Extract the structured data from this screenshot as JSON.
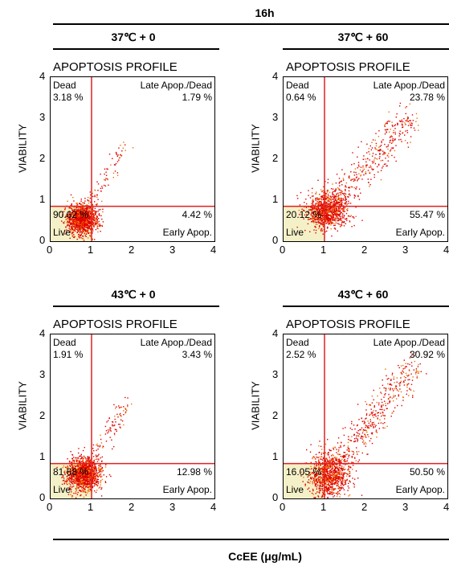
{
  "header": {
    "time_label": "16h"
  },
  "x_axis_label": "CcEE (μg/mL)",
  "chart_data": [
    {
      "type": "scatter",
      "condition": "37℃ + 0",
      "title": "APOPTOSIS PROFILE",
      "ylabel": "VIABILITY",
      "xlim": [
        0,
        4
      ],
      "ylim": [
        0,
        4
      ],
      "xticks": [
        "0",
        "1",
        "2",
        "3",
        "4"
      ],
      "yticks": [
        "0",
        "1",
        "2",
        "3",
        "4"
      ],
      "gate_x": 1,
      "gate_y": 0.85,
      "quadrants": {
        "dead": {
          "label": "Dead",
          "value": "3.18 %"
        },
        "late": {
          "label": "Late Apop./Dead",
          "value": "1.79 %"
        },
        "live": {
          "label": "Live",
          "value": "90.62 %"
        },
        "early": {
          "label": "Early Apop.",
          "value": "4.42 %"
        }
      },
      "cluster": {
        "cx": 0.75,
        "cy": 0.55,
        "sx": 0.18,
        "sy": 0.18,
        "spread": 0.18,
        "tail_fraction": 0.07,
        "tail_end": [
          1.8,
          2.4
        ]
      },
      "point_color": "#e00000"
    },
    {
      "type": "scatter",
      "condition": "37℃ + 60",
      "title": "APOPTOSIS PROFILE",
      "ylabel": "VIABILITY",
      "xlim": [
        0,
        4
      ],
      "ylim": [
        0,
        4
      ],
      "xticks": [
        "0",
        "1",
        "2",
        "3",
        "4"
      ],
      "yticks": [
        "0",
        "1",
        "2",
        "3",
        "4"
      ],
      "gate_x": 1,
      "gate_y": 0.85,
      "quadrants": {
        "dead": {
          "label": "Dead",
          "value": "0.64 %"
        },
        "late": {
          "label": "Late Apop./Dead",
          "value": "23.78 %"
        },
        "live": {
          "label": "Live",
          "value": "20.12 %"
        },
        "early": {
          "label": "Early Apop.",
          "value": "55.47 %"
        }
      },
      "cluster": {
        "cx": 1.05,
        "cy": 0.75,
        "sx": 0.25,
        "sy": 0.22,
        "spread": 0.3,
        "tail_fraction": 0.3,
        "tail_end": [
          3.1,
          3.1
        ]
      },
      "point_color": "#e00000"
    },
    {
      "type": "scatter",
      "condition": "43℃ + 0",
      "title": "APOPTOSIS PROFILE",
      "ylabel": "VIABILITY",
      "xlim": [
        0,
        4
      ],
      "ylim": [
        0,
        4
      ],
      "xticks": [
        "0",
        "1",
        "2",
        "3",
        "4"
      ],
      "yticks": [
        "0",
        "1",
        "2",
        "3",
        "4"
      ],
      "gate_x": 1,
      "gate_y": 0.85,
      "quadrants": {
        "dead": {
          "label": "Dead",
          "value": "1.91 %"
        },
        "late": {
          "label": "Late Apop./Dead",
          "value": "3.43 %"
        },
        "live": {
          "label": "Live",
          "value": "81.68 %"
        },
        "early": {
          "label": "Early Apop.",
          "value": "12.98 %"
        }
      },
      "cluster": {
        "cx": 0.8,
        "cy": 0.6,
        "sx": 0.2,
        "sy": 0.2,
        "spread": 0.2,
        "tail_fraction": 0.08,
        "tail_end": [
          1.9,
          2.4
        ]
      },
      "point_color": "#e00000"
    },
    {
      "type": "scatter",
      "condition": "43℃ + 60",
      "title": "APOPTOSIS PROFILE",
      "ylabel": "VIABILITY",
      "xlim": [
        0,
        4
      ],
      "ylim": [
        0,
        4
      ],
      "xticks": [
        "0",
        "1",
        "2",
        "3",
        "4"
      ],
      "yticks": [
        "0",
        "1",
        "2",
        "3",
        "4"
      ],
      "gate_x": 1,
      "gate_y": 0.85,
      "quadrants": {
        "dead": {
          "label": "Dead",
          "value": "2.52 %"
        },
        "late": {
          "label": "Late Apop./Dead",
          "value": "30.92 %"
        },
        "live": {
          "label": "Live",
          "value": "16.05 %"
        },
        "early": {
          "label": "Early Apop.",
          "value": "50.50 %"
        }
      },
      "cluster": {
        "cx": 1.1,
        "cy": 0.55,
        "sx": 0.25,
        "sy": 0.28,
        "spread": 0.3,
        "tail_fraction": 0.32,
        "tail_end": [
          3.2,
          3.3
        ]
      },
      "point_color": "#e00000"
    }
  ]
}
